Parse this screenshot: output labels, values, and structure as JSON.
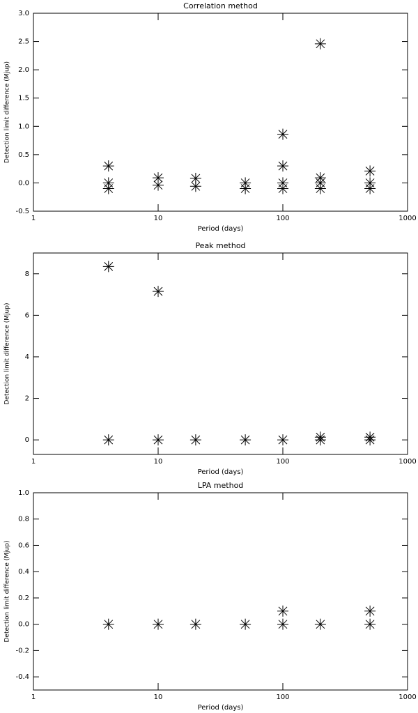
{
  "chart_data": [
    {
      "type": "scatter",
      "title": "Correlation method",
      "xlabel": "Period (days)",
      "ylabel": "Detection limit difference (Mjup)",
      "log_x": true,
      "xlim": [
        1,
        1000
      ],
      "xticks": [
        1,
        10,
        100,
        1000
      ],
      "ylim": [
        -0.5,
        3.0
      ],
      "yticks": [
        {
          "value": -0.5,
          "label": "-0.5"
        },
        {
          "value": 0,
          "label": "0.0"
        },
        {
          "value": 0.5,
          "label": "0.5"
        },
        {
          "value": 1,
          "label": "1.0"
        },
        {
          "value": 1.5,
          "label": "1.5"
        },
        {
          "value": 2,
          "label": "2.0"
        },
        {
          "value": 2.5,
          "label": "2.5"
        },
        {
          "value": 3,
          "label": "3.0"
        }
      ],
      "color": "#000000",
      "x": [
        4,
        4,
        4,
        10,
        10,
        20,
        20,
        50,
        50,
        100,
        100,
        100,
        100,
        200,
        200,
        200,
        200,
        500,
        500,
        500
      ],
      "y": [
        0.3,
        0.0,
        -0.1,
        0.09,
        -0.04,
        0.08,
        -0.06,
        0.0,
        -0.1,
        0.86,
        0.3,
        0.0,
        -0.1,
        2.46,
        0.09,
        0.0,
        -0.1,
        0.21,
        0.0,
        -0.1
      ]
    },
    {
      "type": "scatter",
      "title": "Peak method",
      "xlabel": "Period (days)",
      "ylabel": "Detection limit difference (Mjup)",
      "log_x": true,
      "xlim": [
        1,
        1000
      ],
      "xticks": [
        1,
        10,
        100,
        1000
      ],
      "ylim": [
        -0.7,
        9
      ],
      "yticks": [
        0,
        2,
        4,
        6,
        8
      ],
      "color": "#000000",
      "x": [
        4,
        4,
        10,
        10,
        20,
        50,
        100,
        200,
        200,
        500,
        500
      ],
      "y": [
        8.35,
        0,
        7.15,
        0,
        0,
        0,
        0,
        0.13,
        0,
        0.13,
        0
      ]
    },
    {
      "type": "scatter",
      "title": "LPA method",
      "xlabel": "Period (days)",
      "ylabel": "Detection limit difference (Mjup)",
      "log_x": true,
      "xlim": [
        1,
        1000
      ],
      "xticks": [
        1,
        10,
        100,
        1000
      ],
      "ylim": [
        -0.5,
        1.0
      ],
      "yticks": [
        {
          "value": -0.4,
          "label": "-0.4"
        },
        {
          "value": -0.2,
          "label": "-0.2"
        },
        {
          "value": 0,
          "label": "0.0"
        },
        {
          "value": 0.2,
          "label": "0.2"
        },
        {
          "value": 0.4,
          "label": "0.4"
        },
        {
          "value": 0.6,
          "label": "0.6"
        },
        {
          "value": 0.8,
          "label": "0.8"
        },
        {
          "value": 1,
          "label": "1.0"
        }
      ],
      "color": "#000000",
      "x": [
        4,
        10,
        20,
        50,
        100,
        100,
        200,
        500,
        500
      ],
      "y": [
        0,
        0,
        0,
        0,
        0.1,
        0,
        0,
        0.1,
        0
      ]
    }
  ]
}
